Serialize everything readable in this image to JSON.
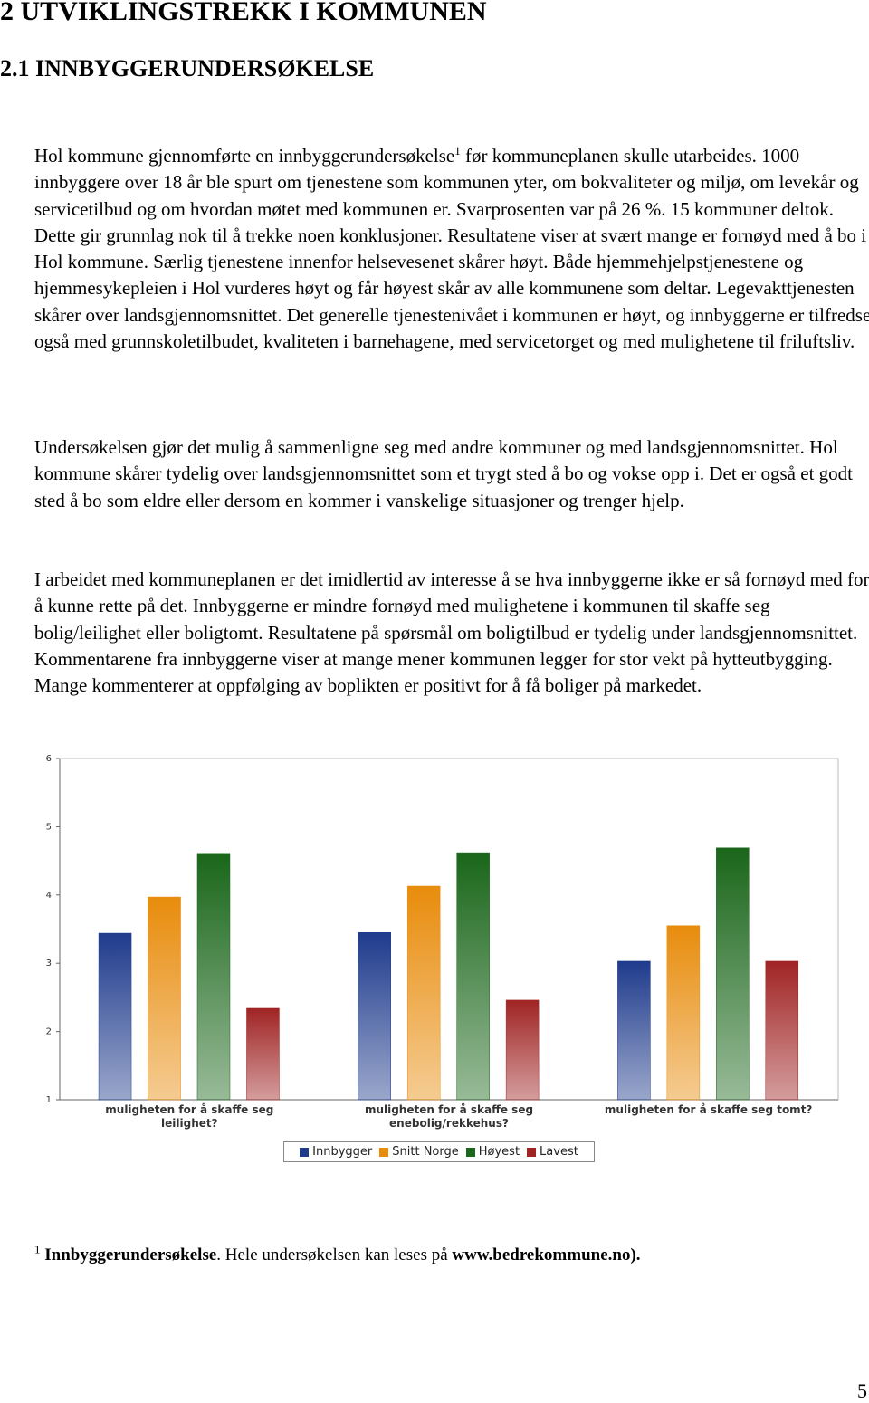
{
  "header": {
    "title": "2   UTVIKLINGSTREKK I KOMMUNEN",
    "subtitle": "2.1   INNBYGGERUNDERSØKELSE"
  },
  "paragraphs": [
    {
      "before": "Hol kommune gjennomførte en innbyggerundersøkelse",
      "footnote_ref": "1",
      "after": " før kommuneplanen skulle utarbeides. 1000 innbyggere over 18 år ble spurt om tjenestene som kommunen yter, om bokvaliteter og miljø, om levekår og servicetilbud og om hvordan møtet med kommunen er. Svarprosenten var på 26 %. 15 kommuner deltok. Dette gir grunnlag nok til å trekke noen konklusjoner. Resultatene viser at svært mange er fornøyd med å bo i Hol kommune. Særlig tjenestene innenfor helsevesenet skårer høyt. Både hjemmehjelpstjenestene og hjemmesykepleien i Hol vurderes høyt og får høyest skår av alle kommunene som deltar. Legevakttjenesten skårer over landsgjennomsnittet. Det generelle tjenestenivået i kommunen er høyt, og innbyggerne er tilfredse også med grunnskoletilbudet, kvaliteten i barnehagene, med servicetorget og med mulighetene til friluftsliv."
    },
    {
      "text": "Undersøkelsen gjør det mulig å sammenligne seg med andre kommuner og med landsgjennomsnittet. Hol kommune skårer tydelig over landsgjennomsnittet som et trygt sted å bo og vokse opp i. Det er også et godt sted å bo som eldre eller dersom en kommer i vanskelige situasjoner og trenger hjelp."
    },
    {
      "text": "I arbeidet med kommuneplanen er det imidlertid av interesse å se hva innbyggerne ikke er så fornøyd med for å kunne rette på det. Innbyggerne er mindre fornøyd med mulighetene i kommunen til skaffe seg bolig/leilighet eller boligtomt. Resultatene på spørsmål om boligtilbud er tydelig under landsgjennomsnittet. Kommentarene fra innbyggerne viser at mange mener kommunen legger for stor vekt på hytteutbygging. Mange kommenterer at oppfølging av boplikten er positivt for å få boliger på markedet."
    }
  ],
  "chart_data": {
    "type": "bar",
    "categories": [
      "muligheten for å skaffe seg leilighet?",
      "muligheten for å skaffe seg enebolig/rekkehus?",
      "muligheten for å skaffe seg tomt?"
    ],
    "series": [
      {
        "name": "Innbygger",
        "color": "#1f3b8c",
        "values": [
          3.44,
          3.45,
          3.03
        ]
      },
      {
        "name": "Snitt Norge",
        "color": "#e88c0c",
        "values": [
          3.97,
          4.13,
          3.55
        ]
      },
      {
        "name": "Høyest",
        "color": "#1a661a",
        "values": [
          4.61,
          4.62,
          4.69
        ]
      },
      {
        "name": "Lavest",
        "color": "#a02424",
        "values": [
          2.34,
          2.46,
          3.03
        ]
      }
    ],
    "ylim": [
      1,
      6
    ],
    "yticks": [
      1,
      2,
      3,
      4,
      5,
      6
    ],
    "grid": false
  },
  "footnote": {
    "number": "1",
    "title": "Innbyggerundersøkelse",
    "text": ". Hele undersøkelsen kan leses på ",
    "link": "www.bedrekommune.no",
    "end": ")."
  },
  "page_number": "5"
}
